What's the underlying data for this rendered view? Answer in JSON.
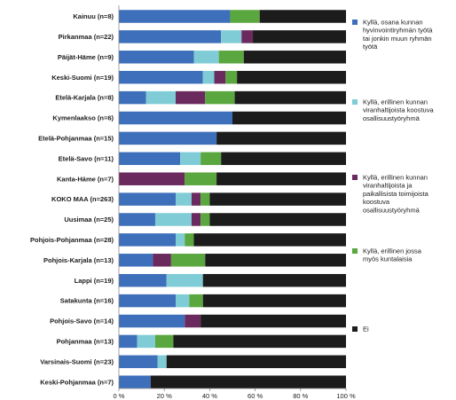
{
  "chart_data": {
    "type": "bar",
    "orientation": "horizontal",
    "stacked": "percent",
    "categories": [
      "Kainuu (n=8)",
      "Pirkanmaa (n=22)",
      "Päijät-Häme (n=9)",
      "Keski-Suomi (n=19)",
      "Etelä-Karjala (n=8)",
      "Kymenlaakso (n=6)",
      "Etelä-Pohjanmaa (n=15)",
      "Etelä-Savo (n=11)",
      "Kanta-Häme (n=7)",
      "KOKO MAA (n=263)",
      "Uusimaa (n=25)",
      "Pohjois-Pohjanmaa (n=28)",
      "Pohjois-Karjala (n=13)",
      "Lappi (n=19)",
      "Satakunta (n=16)",
      "Pohjois-Savo (n=14)",
      "Pohjanmaa (n=13)",
      "Varsinais-Suomi (n=23)",
      "Keski-Pohjanmaa (n=7)"
    ],
    "series": [
      {
        "name": "Kyllä, osana kunnan hyvinvointiryhmän työtä tai jonkin muun ryhmän työtä",
        "color": "#3e6fba",
        "values": [
          49,
          45,
          33,
          37,
          12,
          50,
          40,
          27,
          0,
          25,
          16,
          25,
          15,
          21,
          25,
          29,
          8,
          17,
          14
        ]
      },
      {
        "name": "Kyllä, erillinen kunnan viranhaltijoista koostuva osallisuustyöryhmä",
        "color": "#7fccd6",
        "values": [
          0,
          9,
          11,
          5,
          13,
          0,
          0,
          9,
          0,
          7,
          16,
          4,
          0,
          16,
          6,
          0,
          8,
          4,
          0
        ]
      },
      {
        "name": "Kyllä, erillinen kunnan viranhaltijoista ja paikallisista toimijoista koostuva osallisuustyöryhmä",
        "color": "#6b2a5e",
        "values": [
          0,
          5,
          0,
          5,
          13,
          0,
          0,
          0,
          29,
          4,
          4,
          0,
          8,
          0,
          0,
          7,
          0,
          0,
          0
        ]
      },
      {
        "name": "Kyllä, erillinen jossa myös kuntalaisia",
        "color": "#5aa63f",
        "values": [
          13,
          0,
          11,
          5,
          13,
          0,
          0,
          9,
          14,
          4,
          4,
          4,
          15,
          0,
          6,
          0,
          8,
          0,
          0
        ]
      },
      {
        "name": "Ei",
        "color": "#1c1c1c",
        "values": [
          38,
          41,
          45,
          48,
          49,
          50,
          53,
          55,
          57,
          60,
          60,
          67,
          62,
          63,
          63,
          64,
          76,
          79,
          86
        ]
      }
    ],
    "x_ticks": [
      "0 %",
      "20 %",
      "40 %",
      "60 %",
      "80 %",
      "100 %"
    ],
    "xlim": [
      0,
      100
    ],
    "legend_position": "right",
    "grid": false
  }
}
